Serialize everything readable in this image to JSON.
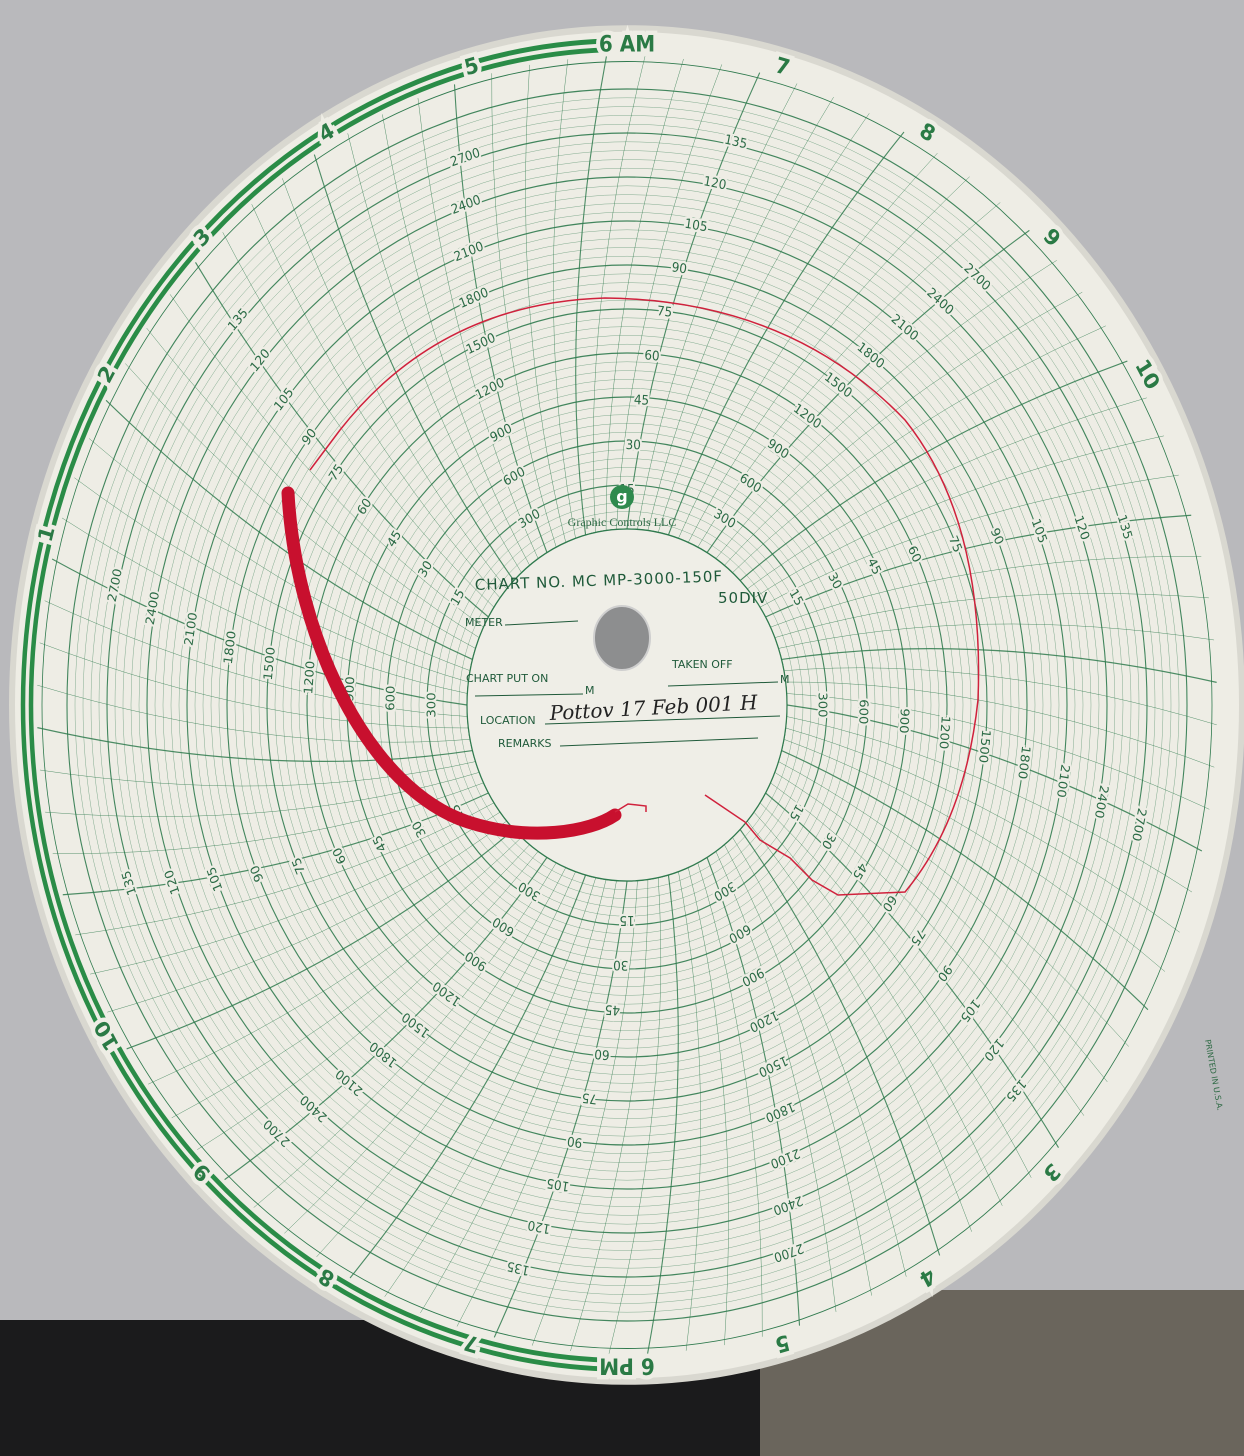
{
  "logo": {
    "letter": "g",
    "company": "Graphic Controls LLC"
  },
  "chart_no": "CHART NO. MC MP-3000-150F",
  "divisions": "50DIV",
  "fields": {
    "meter": "METER",
    "put_on": "CHART PUT ON",
    "taken_off": "TAKEN OFF",
    "m1": "M",
    "m2": "M",
    "location": "LOCATION",
    "location_entry": "Pottov 17 Feb 001 H",
    "remarks": "REMARKS"
  },
  "hour_labels": [
    "6 AM",
    "7",
    "8",
    "9",
    "10",
    "3",
    "4",
    "5",
    "6 PM",
    "7",
    "8",
    "9",
    "10",
    "1",
    "2",
    "3",
    "4",
    "5"
  ],
  "scale_a": [
    "15",
    "30",
    "45",
    "60",
    "75",
    "90",
    "105",
    "120",
    "135"
  ],
  "scale_b": [
    "300",
    "600",
    "900",
    "1200",
    "1500",
    "1800",
    "2100",
    "2400",
    "2700"
  ],
  "printed": "PRINTED IN U.S.A."
}
